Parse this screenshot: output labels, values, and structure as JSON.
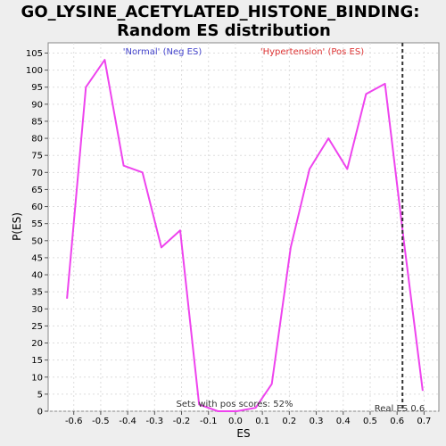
{
  "chart_data": {
    "type": "line",
    "title_line1": "GO_LYSINE_ACETYLATED_HISTONE_BINDING:",
    "title_line2": "Random ES distribution",
    "xlabel": "ES",
    "ylabel": "P(ES)",
    "xlim": [
      -0.695,
      0.755
    ],
    "ylim": [
      0,
      108
    ],
    "x_ticks": [
      -0.6,
      -0.5,
      -0.4,
      -0.3,
      -0.2,
      -0.1,
      0.0,
      0.1,
      0.2,
      0.3,
      0.4,
      0.5,
      0.6,
      0.7
    ],
    "x_tick_labels": [
      "-0.6",
      "-0.5",
      "-0.4",
      "-0.3",
      "-0.2",
      "-0.1",
      "0.0",
      "0.1",
      "0.2",
      "0.3",
      "0.4",
      "0.5",
      "0.6",
      "0.7"
    ],
    "y_ticks": [
      0,
      5,
      10,
      15,
      20,
      25,
      30,
      35,
      40,
      45,
      50,
      55,
      60,
      65,
      70,
      75,
      80,
      85,
      90,
      95,
      100,
      105
    ],
    "grid": true,
    "series": [
      {
        "color": "#ee44ee",
        "x": [
          -0.625,
          -0.555,
          -0.485,
          -0.415,
          -0.345,
          -0.275,
          -0.205,
          -0.135,
          -0.065,
          0.005,
          0.075,
          0.135,
          0.205,
          0.275,
          0.345,
          0.415,
          0.485,
          0.555,
          0.625,
          0.695
        ],
        "y": [
          33,
          95,
          103,
          72,
          70,
          48,
          53,
          2,
          0,
          0,
          1,
          8,
          48,
          71,
          80,
          71,
          93,
          96,
          50,
          6
        ]
      }
    ],
    "real_es": 0.62,
    "annotations": {
      "neg_label": "'Normal' (Neg ES)",
      "pos_label": "'Hypertension' (Pos ES)",
      "pos_scores": "Sets with pos scores: 52%",
      "real_es_label": "Real ES 0.6"
    },
    "colors": {
      "neg_label": "#4444cc",
      "pos_label": "#dd3333",
      "line": "#ee44ee",
      "real_es_line": "#333333"
    }
  }
}
